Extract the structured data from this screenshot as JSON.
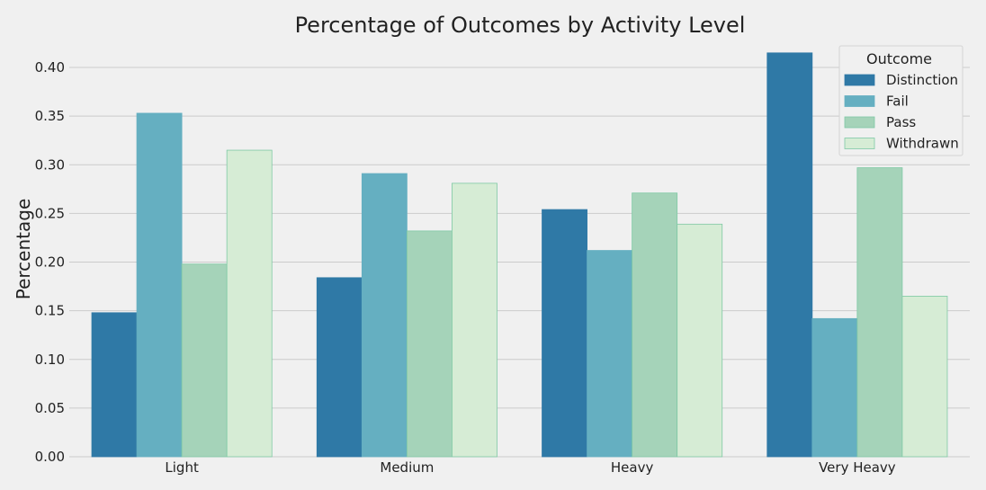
{
  "chart_data": {
    "type": "bar",
    "title": "Percentage of Outcomes by Activity Level",
    "xlabel": "",
    "ylabel": "Percentage",
    "ylim": [
      0,
      0.425
    ],
    "yticks": [
      "0.00",
      "0.05",
      "0.10",
      "0.15",
      "0.20",
      "0.25",
      "0.30",
      "0.35",
      "0.40"
    ],
    "grid": true,
    "legend": {
      "title": "Outcome",
      "placement": "top-right"
    },
    "categories": [
      "Light",
      "Medium",
      "Heavy",
      "Very Heavy"
    ],
    "series": [
      {
        "name": "Distinction",
        "color": "#2f79a6",
        "values": [
          0.148,
          0.184,
          0.254,
          0.415
        ]
      },
      {
        "name": "Fail",
        "color": "#65afc1",
        "values": [
          0.353,
          0.291,
          0.212,
          0.142
        ]
      },
      {
        "name": "Pass",
        "color": "#a5d3b9",
        "values": [
          0.198,
          0.232,
          0.271,
          0.297
        ]
      },
      {
        "name": "Withdrawn",
        "color": "#d6ecd5",
        "values": [
          0.315,
          0.281,
          0.239,
          0.165
        ]
      }
    ]
  }
}
